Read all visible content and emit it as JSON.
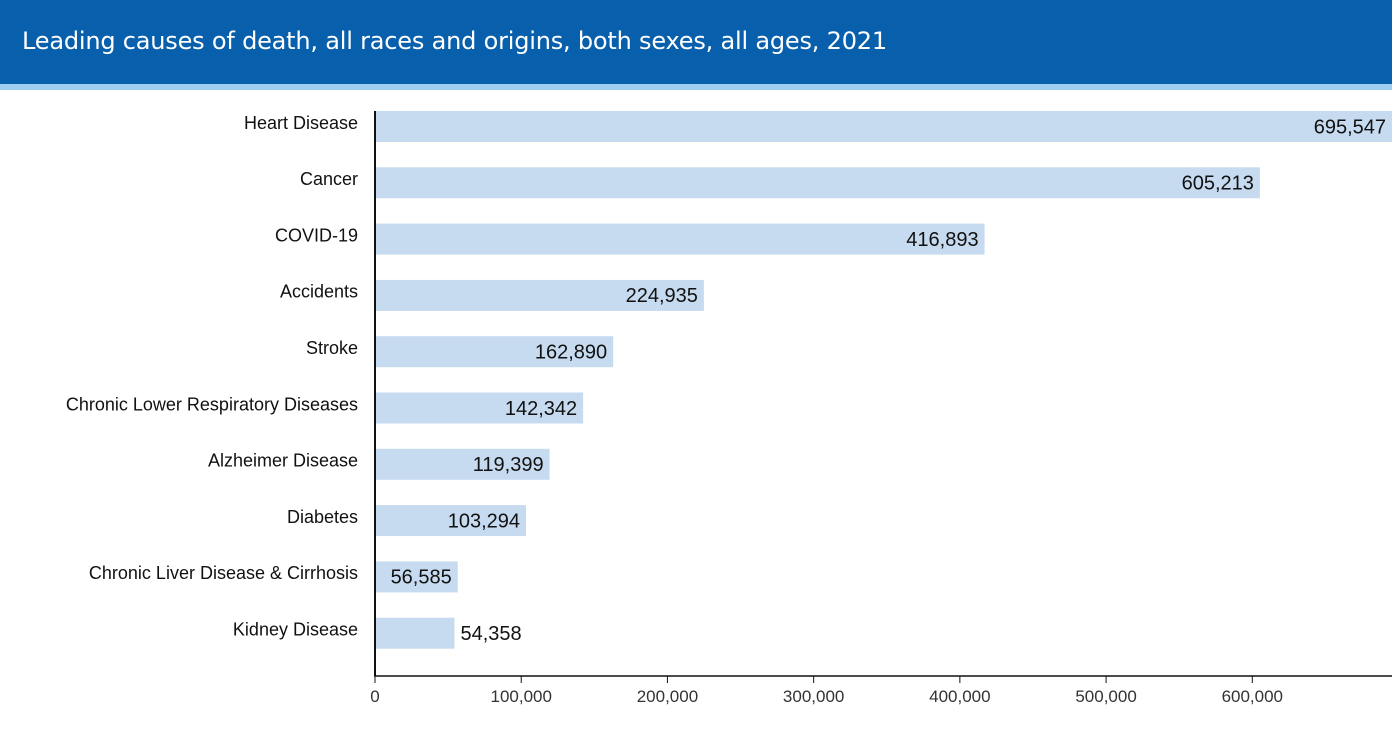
{
  "header": {
    "title": "Leading causes of death, all races and origins, both sexes, all ages, 2021"
  },
  "colors": {
    "header_bg": "#0860ad",
    "header_stripe": "#9fcdf0",
    "bar": "#c6dbf0",
    "axis": "#111111"
  },
  "chart_data": {
    "type": "bar",
    "orientation": "horizontal",
    "title": "Leading causes of death, all races and origins, both sexes, all ages, 2021",
    "categories": [
      "Heart Disease",
      "Cancer",
      "COVID-19",
      "Accidents",
      "Stroke",
      "Chronic Lower Respiratory Diseases",
      "Alzheimer Disease",
      "Diabetes",
      "Chronic Liver Disease & Cirrhosis",
      "Kidney Disease"
    ],
    "values": [
      695547,
      605213,
      416893,
      224935,
      162890,
      142342,
      119399,
      103294,
      56585,
      54358
    ],
    "value_labels": [
      "695,547",
      "605,213",
      "416,893",
      "224,935",
      "162,890",
      "142,342",
      "119,399",
      "103,294",
      "56,585",
      "54,358"
    ],
    "xlim": [
      0,
      695547
    ],
    "xticks": [
      0,
      100000,
      200000,
      300000,
      400000,
      500000,
      600000
    ],
    "xtick_labels": [
      "0",
      "100,000",
      "200,000",
      "300,000",
      "400,000",
      "500,000",
      "600,000"
    ],
    "grid": false,
    "legend": "none"
  }
}
